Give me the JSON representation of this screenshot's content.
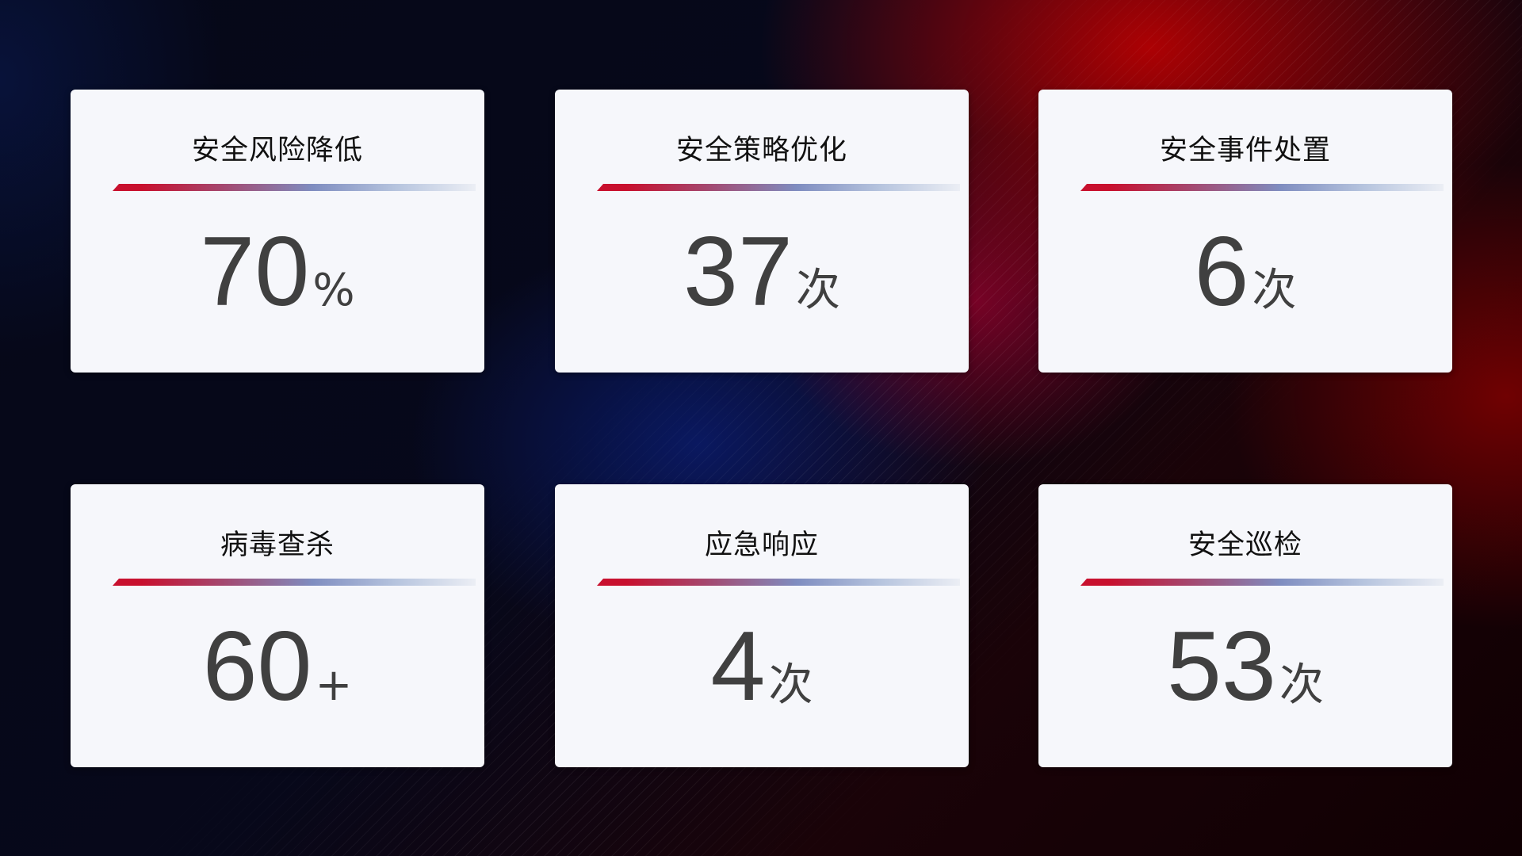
{
  "cards": [
    {
      "title": "安全风险降低",
      "value": "70",
      "unit": "%"
    },
    {
      "title": "安全策略优化",
      "value": "37",
      "unit": "次"
    },
    {
      "title": "安全事件处置",
      "value": "6",
      "unit": "次"
    },
    {
      "title": "病毒查杀",
      "value": "60",
      "unit": "+"
    },
    {
      "title": "应急响应",
      "value": "4",
      "unit": "次"
    },
    {
      "title": "安全巡检",
      "value": "53",
      "unit": "次"
    }
  ],
  "colors": {
    "accent_red": "#c8102e",
    "accent_blue": "#7f8dc0",
    "card_bg": "#f6f7fb",
    "value_text": "#404040"
  }
}
